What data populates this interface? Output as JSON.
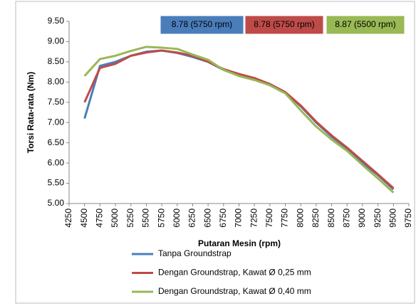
{
  "chart_data": {
    "type": "line",
    "ylabel": "Torsi Rata-rata (Nm)",
    "xlabel": "Putaran Mesin (rpm)",
    "x": [
      4500,
      4750,
      5000,
      5250,
      5500,
      5750,
      6000,
      6250,
      6500,
      6750,
      7000,
      7250,
      7500,
      7750,
      8000,
      8250,
      8500,
      8750,
      9000,
      9250,
      9500
    ],
    "series": [
      {
        "name": "Tanpa Groundstrap",
        "color": "#4a7ebb",
        "values": [
          7.1,
          8.4,
          8.5,
          8.65,
          8.75,
          8.78,
          8.72,
          8.62,
          8.5,
          8.3,
          8.17,
          8.08,
          7.95,
          7.75,
          7.4,
          7.0,
          6.65,
          6.35,
          6.0,
          5.7,
          5.35
        ]
      },
      {
        "name": "Dengan Groundstrap, Kawat Ø 0,25 mm",
        "color": "#be4b48",
        "values": [
          7.5,
          8.35,
          8.45,
          8.65,
          8.73,
          8.78,
          8.73,
          8.65,
          8.5,
          8.32,
          8.2,
          8.1,
          7.95,
          7.75,
          7.42,
          7.02,
          6.68,
          6.38,
          6.05,
          5.72,
          5.38
        ]
      },
      {
        "name": "Dengan Groundstrap, Kawat Ø 0,40 mm",
        "color": "#98b954",
        "values": [
          8.15,
          8.57,
          8.65,
          8.77,
          8.87,
          8.85,
          8.82,
          8.68,
          8.55,
          8.3,
          8.15,
          8.05,
          7.92,
          7.72,
          7.3,
          6.9,
          6.58,
          6.3,
          5.95,
          5.62,
          5.27
        ]
      }
    ],
    "annotations": [
      {
        "text": "8.78 (5750 rpm)",
        "color": "#4a7ebb"
      },
      {
        "text": "8.78 (5750 rpm)",
        "color": "#be4b48"
      },
      {
        "text": "8.87 (5500 rpm)",
        "color": "#98b954"
      }
    ],
    "xlim": [
      4250,
      9750
    ],
    "xticks": [
      4250,
      4500,
      4750,
      5000,
      5250,
      5500,
      5750,
      6000,
      6250,
      6500,
      6750,
      7000,
      7250,
      7500,
      7750,
      8000,
      8250,
      8500,
      8750,
      9000,
      9250,
      9500,
      9750
    ],
    "ylim": [
      5,
      9.5
    ],
    "yticks": [
      {
        "value": 5,
        "label": "5.00"
      },
      {
        "value": 5.5,
        "label": "5.50"
      },
      {
        "value": 6,
        "label": "6.00"
      },
      {
        "value": 6.5,
        "label": "6.50"
      },
      {
        "value": 7,
        "label": "7.00"
      },
      {
        "value": 7.5,
        "label": "7.50"
      },
      {
        "value": 8,
        "label": "8.00"
      },
      {
        "value": 8.5,
        "label": "8.50"
      },
      {
        "value": 9,
        "label": "9.00"
      },
      {
        "value": 9.5,
        "label": "9.50"
      }
    ]
  }
}
